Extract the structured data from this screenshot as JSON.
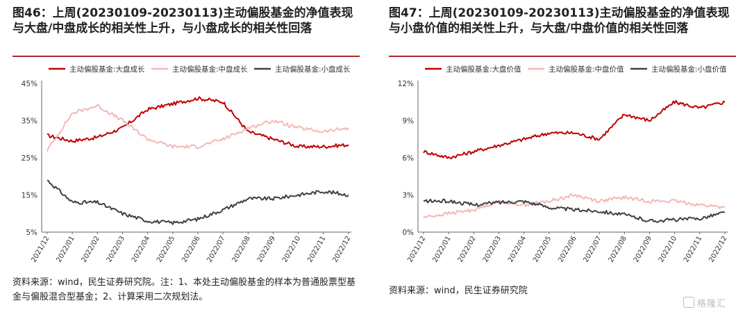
{
  "charts": [
    {
      "title": "图46：上周(20230109-20230113)主动偏股基金的净值表现与大盘/中盘成长的相关性上升，与小盘成长的相关性回落",
      "source": "资料来源：wind，民生证券研究院。注：1、本处主动偏股基金的样本为普通股票型基金与偏股混合型基金；2、计算采用二次规划法。"
    },
    {
      "title": "图47：上周(20230109-20230113)主动偏股基金的净值表现与小盘价值的相关性上升，与大盘/中盘价值的相关性回落",
      "source": "资料来源：wind，民生证券研究院"
    }
  ],
  "watermark": "格隆汇",
  "chart_data": [
    {
      "type": "line",
      "x": [
        "2021/12",
        "2022/01",
        "2022/02",
        "2022/03",
        "2022/04",
        "2022/05",
        "2022/06",
        "2022/07",
        "2022/08",
        "2022/09",
        "2022/10",
        "2022/11",
        "2022/12"
      ],
      "ylim": [
        5,
        45
      ],
      "yticks": [
        "5%",
        "15%",
        "25%",
        "35%",
        "45%"
      ],
      "legend_position": "top",
      "series": [
        {
          "name": "主动偏股基金:大盘成长",
          "color": "#c00000",
          "values": [
            31,
            29.5,
            30.5,
            33,
            38,
            39.5,
            41,
            40,
            32,
            30,
            28,
            28,
            28.5
          ]
        },
        {
          "name": "主动偏股基金:中盘成长",
          "color": "#f2b8b8",
          "values": [
            27,
            37,
            39,
            35,
            30,
            28,
            28,
            30,
            33,
            35,
            33,
            32,
            33
          ]
        },
        {
          "name": "主动偏股基金:小盘成长",
          "color": "#404040",
          "values": [
            19,
            13,
            13,
            10,
            8,
            7.5,
            8.5,
            11,
            14,
            14,
            15,
            16,
            15
          ]
        }
      ]
    },
    {
      "type": "line",
      "x": [
        "2021/12",
        "2022/01",
        "2022/02",
        "2022/03",
        "2022/04",
        "2022/05",
        "2022/06",
        "2022/07",
        "2022/08",
        "2022/09",
        "2022/10",
        "2022/11",
        "2022/12"
      ],
      "ylim": [
        0,
        12
      ],
      "yticks": [
        "0%",
        "3%",
        "6%",
        "9%",
        "12%"
      ],
      "legend_position": "top",
      "series": [
        {
          "name": "主动偏股基金:大盘价值",
          "color": "#c00000",
          "values": [
            6.5,
            6,
            6.5,
            7,
            7.5,
            8,
            8,
            7.5,
            9.5,
            9,
            10.5,
            10,
            10.5
          ]
        },
        {
          "name": "主动偏股基金:中盘价值",
          "color": "#f2b8b8",
          "values": [
            1.2,
            1.5,
            1.8,
            2.5,
            2.2,
            2.5,
            3,
            2.5,
            2.8,
            2.5,
            2.5,
            2.2,
            2
          ]
        },
        {
          "name": "主动偏股基金:小盘价值",
          "color": "#404040",
          "values": [
            2.5,
            2.5,
            2.2,
            2.4,
            2.5,
            2,
            1.8,
            1.7,
            1.4,
            0.9,
            1,
            1.1,
            1.6
          ]
        }
      ]
    }
  ]
}
